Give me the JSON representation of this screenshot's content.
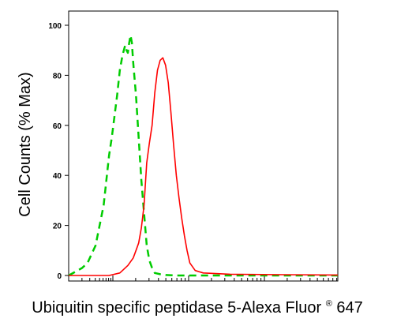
{
  "chart_data": {
    "type": "line",
    "title": "",
    "ylabel": "Cell Counts (% Max)",
    "xlabel": {
      "prefix": "Ubiquitin specific peptidase 5-Alexa Fluor",
      "registered": "®",
      "suffix": " 647"
    },
    "ylim": [
      0,
      100
    ],
    "xlim": [
      0,
      1
    ],
    "x_scale": "log",
    "grid": false,
    "legend": "none",
    "y_ticks": [
      0,
      20,
      40,
      60,
      80,
      100
    ],
    "y_tick_labels": [
      "0",
      "20",
      "40",
      "60",
      "80",
      "100"
    ],
    "series": [
      {
        "color": "#00cc00",
        "dash": "dashed",
        "x": [
          0.0,
          0.05,
          0.07,
          0.1,
          0.13,
          0.15,
          0.16,
          0.18,
          0.19,
          0.2,
          0.21,
          0.215,
          0.22,
          0.225,
          0.23,
          0.235,
          0.24,
          0.25,
          0.26,
          0.27,
          0.28,
          0.29,
          0.3,
          0.31,
          0.32,
          0.34,
          0.36,
          0.4,
          0.5,
          1.0
        ],
        "values": [
          0,
          3,
          5,
          12,
          28,
          48,
          55,
          72,
          82,
          88,
          92,
          90,
          89,
          93,
          96,
          93,
          85,
          72,
          55,
          38,
          25,
          12,
          6,
          3,
          1,
          0.5,
          0.2,
          0,
          0,
          0
        ]
      },
      {
        "color": "#ff0000",
        "dash": "solid",
        "x": [
          0.0,
          0.15,
          0.19,
          0.2,
          0.22,
          0.24,
          0.25,
          0.26,
          0.27,
          0.28,
          0.29,
          0.3,
          0.31,
          0.32,
          0.33,
          0.34,
          0.35,
          0.36,
          0.37,
          0.38,
          0.39,
          0.4,
          0.41,
          0.42,
          0.43,
          0.44,
          0.45,
          0.47,
          0.5,
          0.6,
          0.8,
          1.0
        ],
        "values": [
          0,
          0,
          1,
          2,
          4,
          7,
          10,
          13,
          19,
          28,
          45,
          53,
          60,
          73,
          82,
          86,
          87,
          84,
          77,
          65,
          52,
          40,
          31,
          23,
          16,
          10,
          5,
          2,
          1,
          0.5,
          0.3,
          0.2
        ]
      }
    ]
  }
}
